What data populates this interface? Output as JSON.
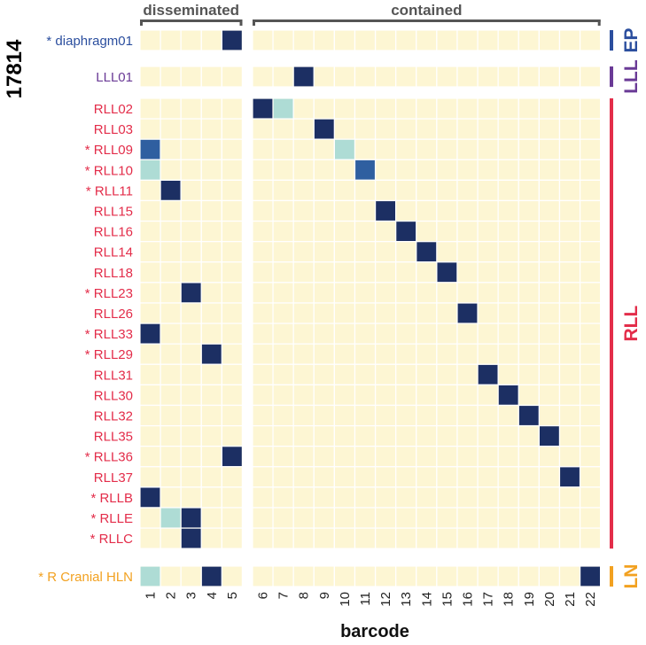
{
  "chart_data": {
    "type": "heatmap",
    "sample_id": "17814",
    "xlabel": "barcode",
    "panels": [
      {
        "label": "disseminated",
        "barcodes": [
          "1",
          "2",
          "3",
          "4",
          "5"
        ]
      },
      {
        "label": "contained",
        "barcodes": [
          "6",
          "7",
          "8",
          "9",
          "10",
          "11",
          "12",
          "13",
          "14",
          "15",
          "16",
          "17",
          "18",
          "19",
          "20",
          "21",
          "22"
        ]
      }
    ],
    "colors": {
      "background": "#fdf6d3",
      "high": "#1c2f63",
      "medium": "#2f5fa0",
      "low": "#aedcd5",
      "EP": "#2b4e9e",
      "LLL": "#6a3a96",
      "RLL": "#e32d4a",
      "LN": "#f2a120",
      "bracket": "#555555"
    },
    "groups": [
      {
        "name": "EP",
        "rows": [
          {
            "label": "* diaphragm01",
            "cells": [
              [
                5,
                "high"
              ]
            ]
          }
        ]
      },
      {
        "name": "LLL",
        "rows": [
          {
            "label": "LLL01",
            "cells": [
              [
                8,
                "high"
              ]
            ]
          }
        ]
      },
      {
        "name": "RLL",
        "rows": [
          {
            "label": "RLL02",
            "cells": [
              [
                6,
                "high"
              ],
              [
                7,
                "low"
              ]
            ]
          },
          {
            "label": "RLL03",
            "cells": [
              [
                9,
                "high"
              ]
            ]
          },
          {
            "label": "* RLL09",
            "cells": [
              [
                1,
                "medium"
              ],
              [
                10,
                "low"
              ]
            ]
          },
          {
            "label": "* RLL10",
            "cells": [
              [
                1,
                "low"
              ],
              [
                11,
                "medium"
              ]
            ]
          },
          {
            "label": "* RLL11",
            "cells": [
              [
                2,
                "high"
              ]
            ]
          },
          {
            "label": "RLL15",
            "cells": [
              [
                12,
                "high"
              ]
            ]
          },
          {
            "label": "RLL16",
            "cells": [
              [
                13,
                "high"
              ]
            ]
          },
          {
            "label": "RLL14",
            "cells": [
              [
                14,
                "high"
              ]
            ]
          },
          {
            "label": "RLL18",
            "cells": [
              [
                15,
                "high"
              ]
            ]
          },
          {
            "label": "* RLL23",
            "cells": [
              [
                3,
                "high"
              ]
            ]
          },
          {
            "label": "RLL26",
            "cells": [
              [
                16,
                "high"
              ]
            ]
          },
          {
            "label": "* RLL33",
            "cells": [
              [
                1,
                "high"
              ]
            ]
          },
          {
            "label": "* RLL29",
            "cells": [
              [
                4,
                "high"
              ]
            ]
          },
          {
            "label": "RLL31",
            "cells": [
              [
                17,
                "high"
              ]
            ]
          },
          {
            "label": "RLL30",
            "cells": [
              [
                18,
                "high"
              ]
            ]
          },
          {
            "label": "RLL32",
            "cells": [
              [
                19,
                "high"
              ]
            ]
          },
          {
            "label": "RLL35",
            "cells": [
              [
                20,
                "high"
              ]
            ]
          },
          {
            "label": "* RLL36",
            "cells": [
              [
                5,
                "high"
              ]
            ]
          },
          {
            "label": "RLL37",
            "cells": [
              [
                21,
                "high"
              ]
            ]
          },
          {
            "label": "* RLLB",
            "cells": [
              [
                1,
                "high"
              ]
            ]
          },
          {
            "label": "* RLLE",
            "cells": [
              [
                2,
                "low"
              ],
              [
                3,
                "high"
              ]
            ]
          },
          {
            "label": "* RLLC",
            "cells": [
              [
                3,
                "high"
              ]
            ]
          }
        ]
      },
      {
        "name": "LN",
        "rows": [
          {
            "label": "* R Cranial HLN",
            "cells": [
              [
                1,
                "low"
              ],
              [
                4,
                "high"
              ],
              [
                22,
                "high"
              ]
            ]
          }
        ]
      }
    ]
  }
}
